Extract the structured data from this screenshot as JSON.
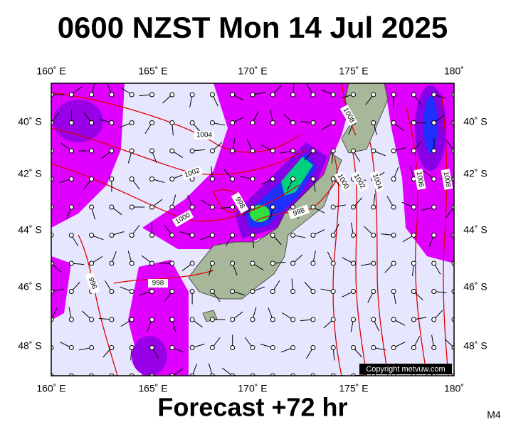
{
  "title": "0600 NZST Mon 14 Jul 2025",
  "lon_labels": [
    "160˚ E",
    "165˚ E",
    "170˚ E",
    "175˚ E",
    "180˚"
  ],
  "lat_labels": [
    "40˚ S",
    "42˚ S",
    "44˚ S",
    "46˚ S",
    "48˚ S"
  ],
  "isobar_labels": [
    "1004",
    "1002",
    "1000",
    "998",
    "998",
    "996",
    "998",
    "1008",
    "1000",
    "1002",
    "1004",
    "1006",
    "1008"
  ],
  "copyright": "Copyright metvuw.com",
  "footer": "Forecast +72 hr",
  "code": "M4"
}
